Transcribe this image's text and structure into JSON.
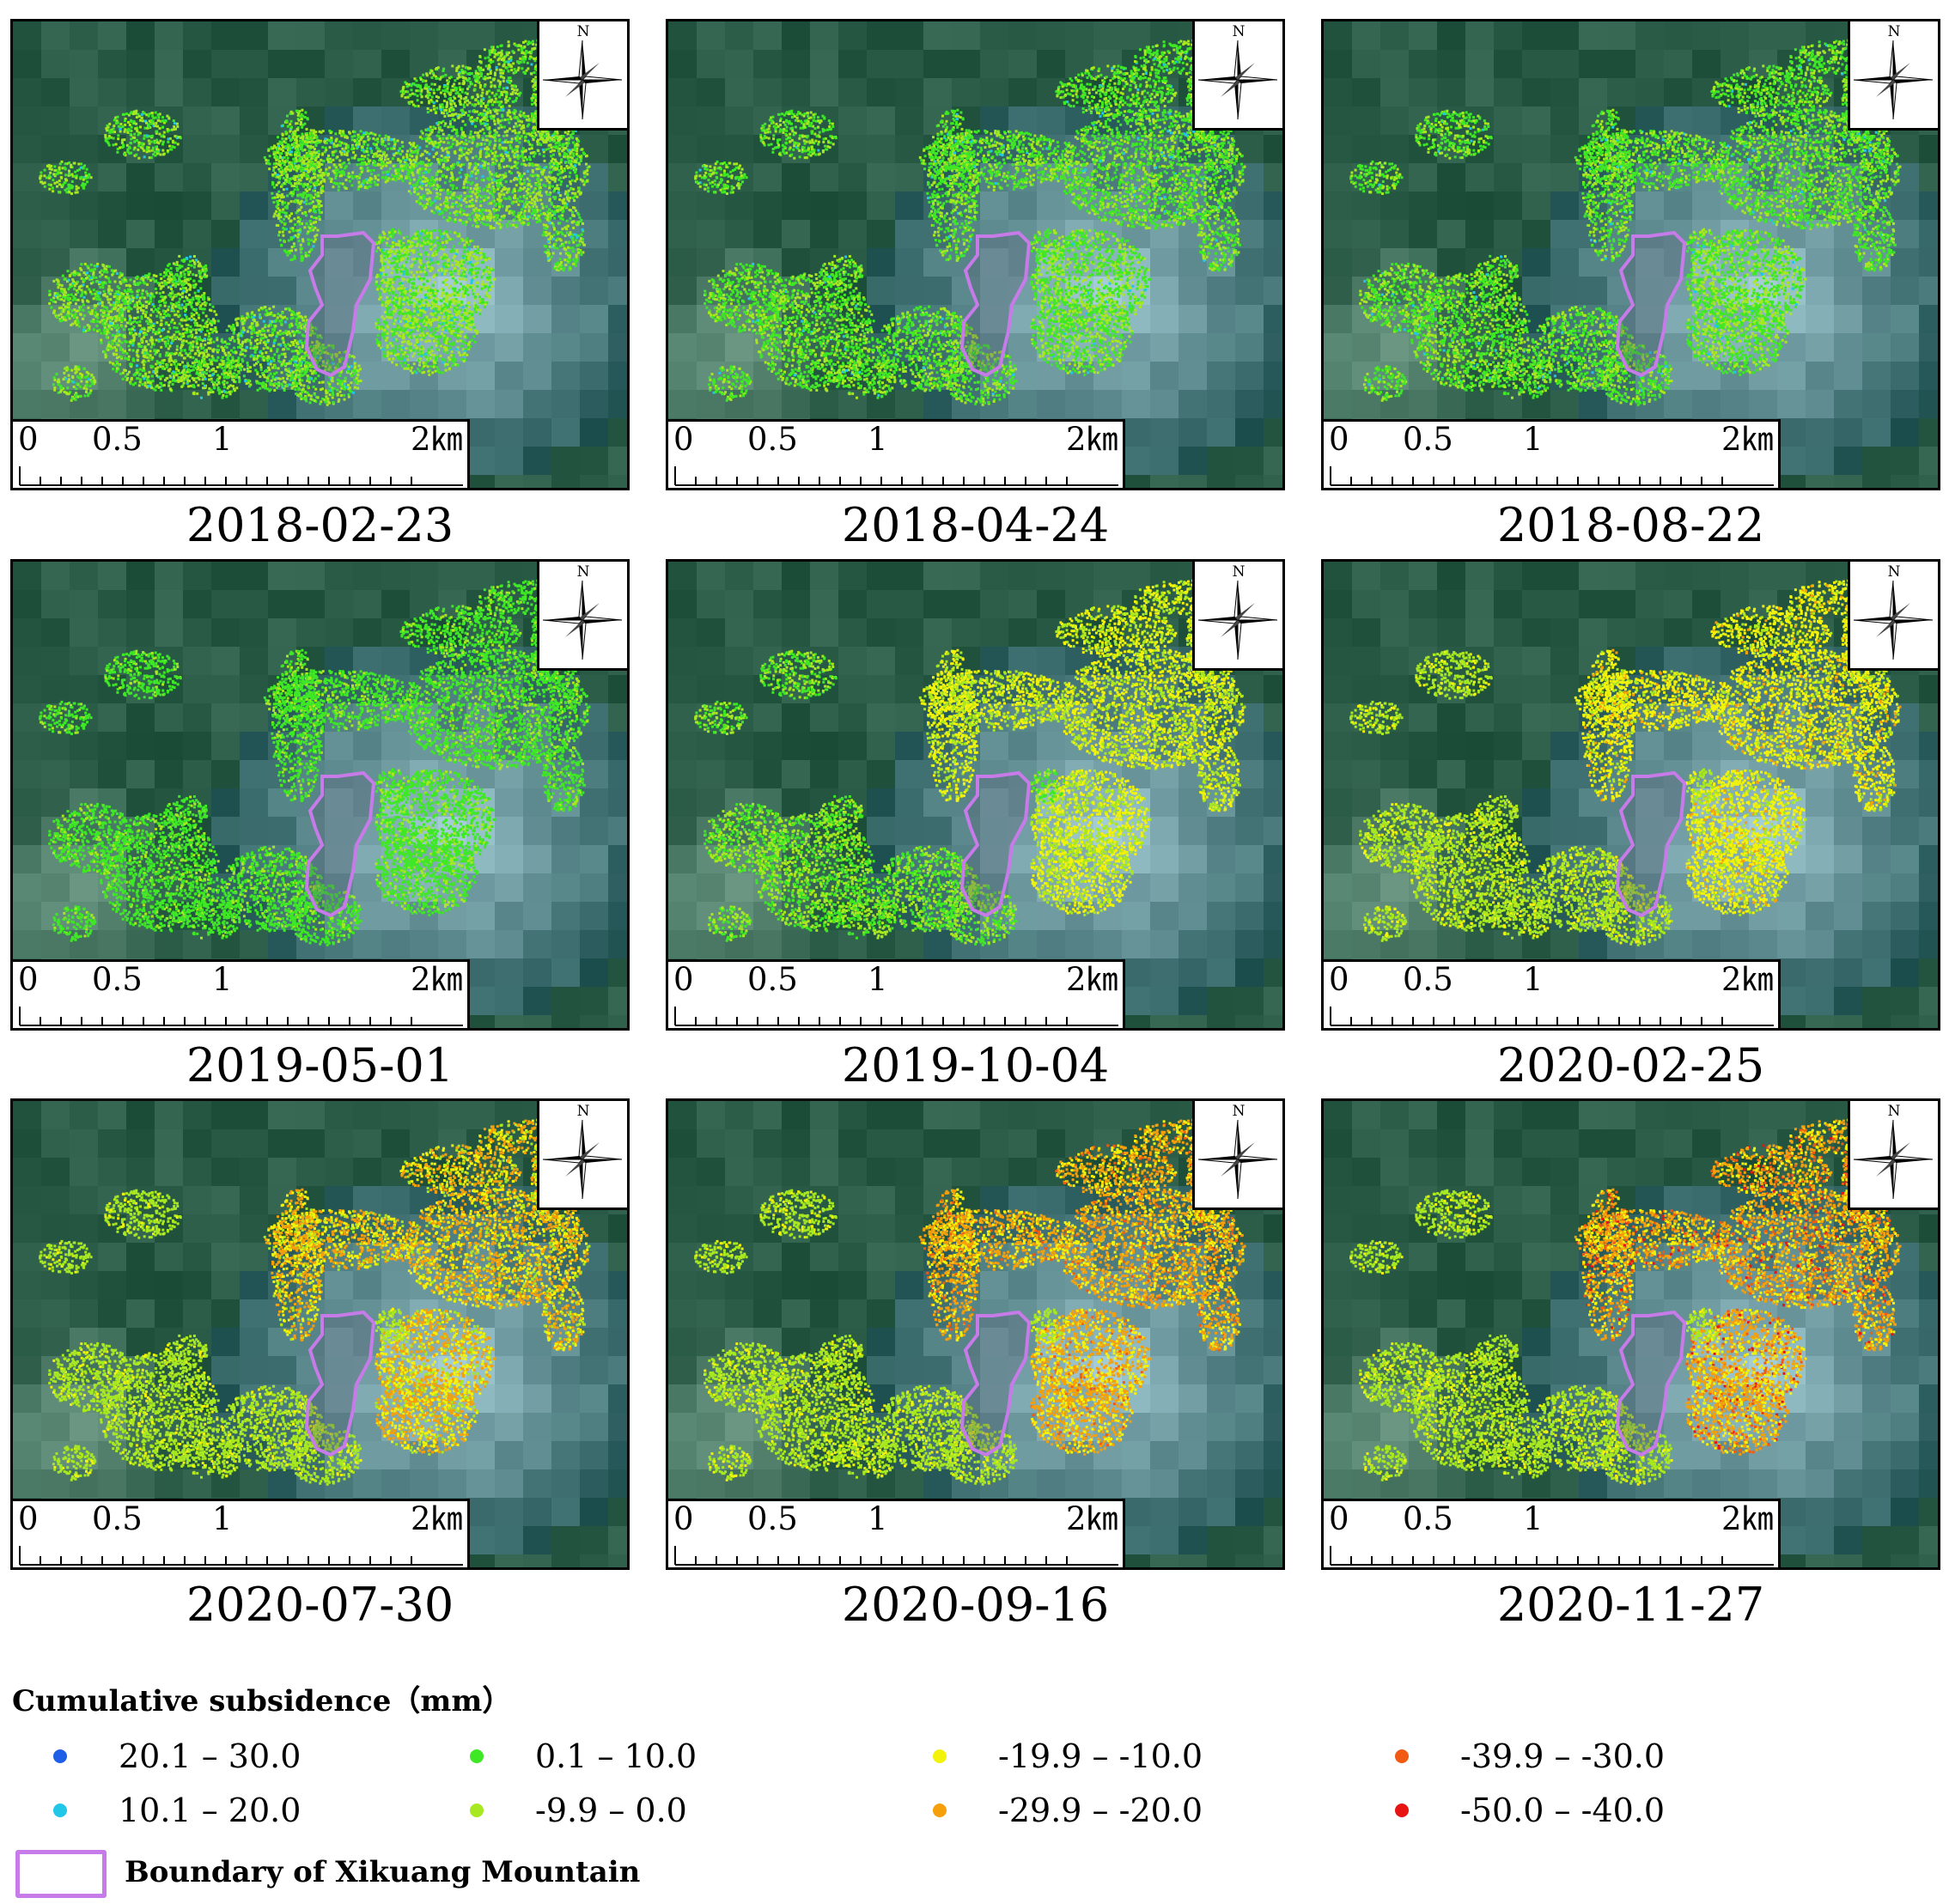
{
  "compass_label": "N",
  "scale": {
    "ticks": [
      "0",
      "0.5",
      "1",
      "2㎞"
    ]
  },
  "panels": [
    {
      "date": "2018-02-23",
      "stage": 0
    },
    {
      "date": "2018-04-24",
      "stage": 1
    },
    {
      "date": "2018-08-22",
      "stage": 1
    },
    {
      "date": "2019-05-01",
      "stage": 2
    },
    {
      "date": "2019-10-04",
      "stage": 3
    },
    {
      "date": "2020-02-25",
      "stage": 4
    },
    {
      "date": "2020-07-30",
      "stage": 5
    },
    {
      "date": "2020-09-16",
      "stage": 6
    },
    {
      "date": "2020-11-27",
      "stage": 7
    }
  ],
  "legend": {
    "title": "Cumulative subsidence（mm）",
    "classes": [
      {
        "label": "20.1 – 30.0",
        "color": "#1f5fe8"
      },
      {
        "label": "10.1 – 20.0",
        "color": "#22c7e8"
      },
      {
        "label": "0.1 – 10.0",
        "color": "#3ee825"
      },
      {
        "label": "-9.9 – 0.0",
        "color": "#a8e820"
      },
      {
        "label": "-19.9 – -10.0",
        "color": "#f2f20a"
      },
      {
        "label": "-29.9 – -20.0",
        "color": "#f5a00a"
      },
      {
        "label": "-39.9 – -30.0",
        "color": "#f25a14"
      },
      {
        "label": "-50.0 – -40.0",
        "color": "#e81414"
      }
    ],
    "boundary_label": "Boundary of Xikuang Mountain",
    "boundary_color": "#c77be8"
  }
}
